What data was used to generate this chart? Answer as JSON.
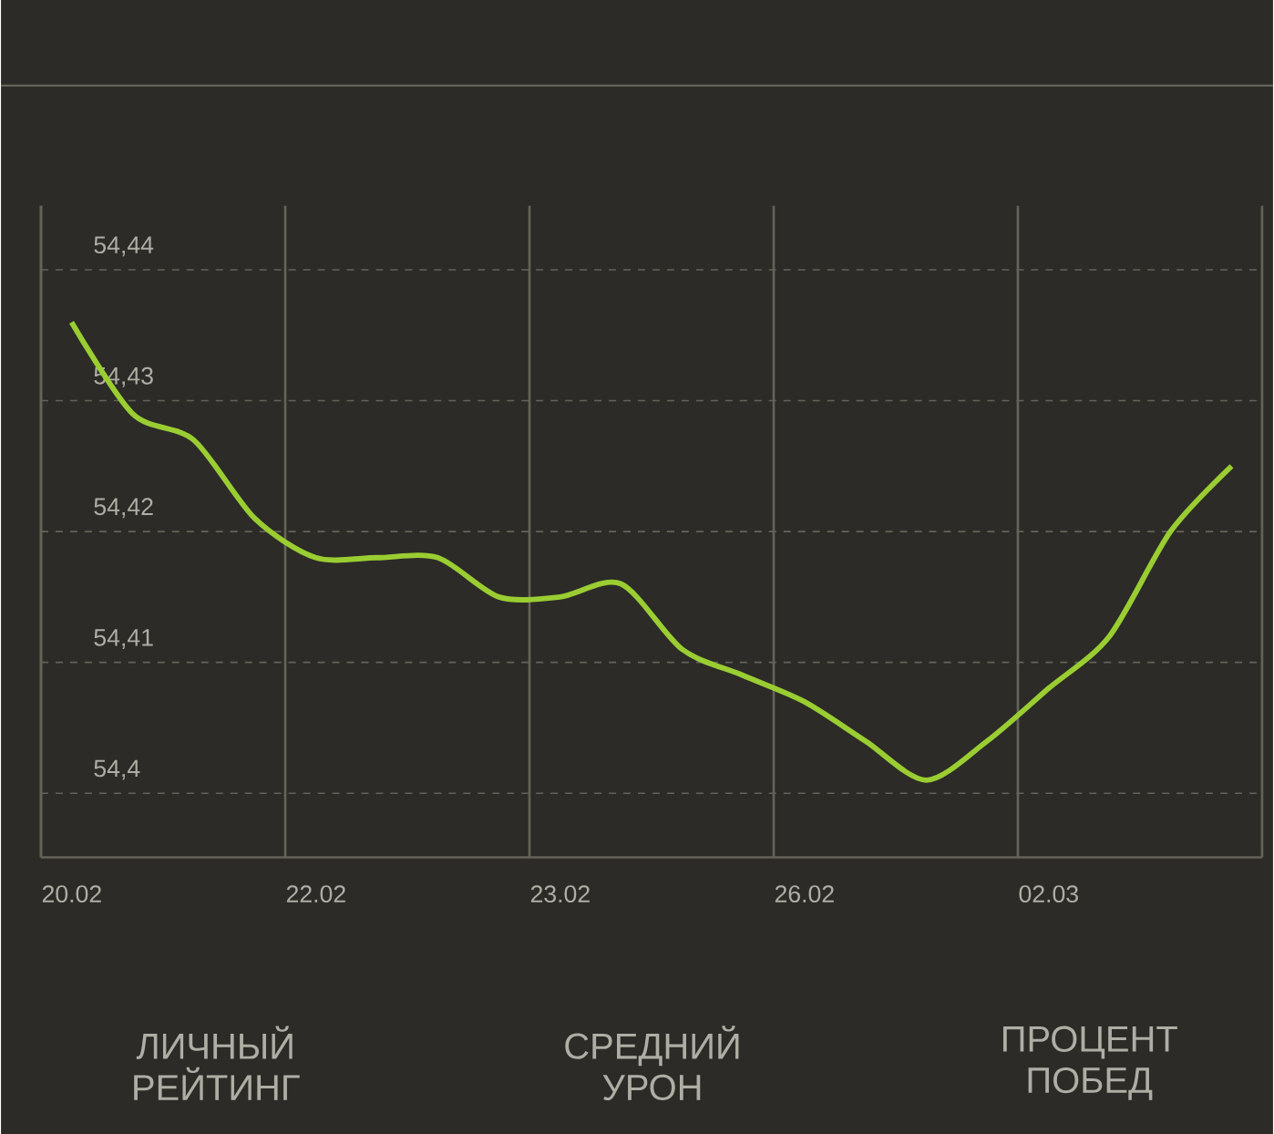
{
  "chart_data": {
    "type": "line",
    "color": "#9acd32",
    "grid": true,
    "marker": "none",
    "line_style": "solid",
    "categories": [
      "20.02",
      null,
      null,
      null,
      "22.02",
      null,
      null,
      null,
      "23.02",
      null,
      null,
      null,
      "26.02",
      null,
      null,
      null,
      "02.03",
      null,
      null,
      null
    ],
    "values": [
      54.436,
      54.429,
      54.427,
      54.421,
      54.418,
      54.418,
      54.418,
      54.415,
      54.415,
      54.416,
      54.411,
      54.409,
      54.407,
      54.404,
      54.401,
      54.404,
      54.408,
      54.412,
      54.42,
      54.425
    ],
    "ylim": [
      54.3951,
      54.4449
    ],
    "yticks": [
      {
        "value": 54.4,
        "label": "54,4"
      },
      {
        "value": 54.41,
        "label": "54,41"
      },
      {
        "value": 54.42,
        "label": "54,42"
      },
      {
        "value": 54.43,
        "label": "54,43"
      },
      {
        "value": 54.44,
        "label": "54,44"
      }
    ],
    "annotations": [
      "ЛИЧНЫЙ РЕЙТИНГ",
      "СРЕДНИЙ УРОН",
      "ПРОЦЕНТ ПОБЕД"
    ]
  }
}
